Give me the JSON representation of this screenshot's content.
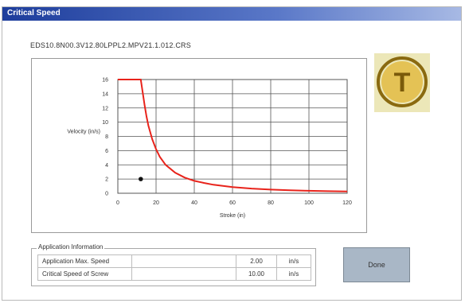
{
  "window": {
    "title": "Critical Speed"
  },
  "model_title": "EDS10.8N00.3V12.80LPPL2.MPV21.1.012.CRS",
  "chart_data": {
    "type": "line",
    "xlabel": "Stroke (in)",
    "ylabel": "Velocity (in/s)",
    "xlim": [
      0,
      120
    ],
    "ylim": [
      0,
      16
    ],
    "xticks": [
      0,
      20,
      40,
      60,
      80,
      100,
      120
    ],
    "yticks": [
      0,
      2,
      4,
      6,
      8,
      10,
      12,
      14,
      16
    ],
    "grid": true,
    "series": [
      {
        "color": "#e8231b",
        "x": [
          0,
          12,
          13,
          14,
          15,
          16,
          18,
          20,
          22,
          25,
          30,
          35,
          40,
          45,
          50,
          60,
          70,
          80,
          90,
          100,
          110,
          120
        ],
        "y": [
          16,
          16,
          14.2,
          12.4,
          10.8,
          9.5,
          7.6,
          6.2,
          5.1,
          4.0,
          2.9,
          2.2,
          1.75,
          1.45,
          1.2,
          0.87,
          0.66,
          0.52,
          0.42,
          0.35,
          0.29,
          0.25
        ]
      }
    ],
    "point": {
      "x": 12,
      "y": 2,
      "color": "#111111"
    }
  },
  "logo": {
    "letter": "T",
    "colors": {
      "ring": "#8a6a10",
      "fill": "#e4c255",
      "letter": "#7a5a0a"
    }
  },
  "application_info": {
    "legend": "Application Information",
    "rows": [
      {
        "label": "Application Max. Speed",
        "value": "2.00",
        "unit": "in/s"
      },
      {
        "label": "Critical Speed of Screw",
        "value": "10.00",
        "unit": "in/s"
      }
    ]
  },
  "done_button": {
    "label": "Done"
  }
}
